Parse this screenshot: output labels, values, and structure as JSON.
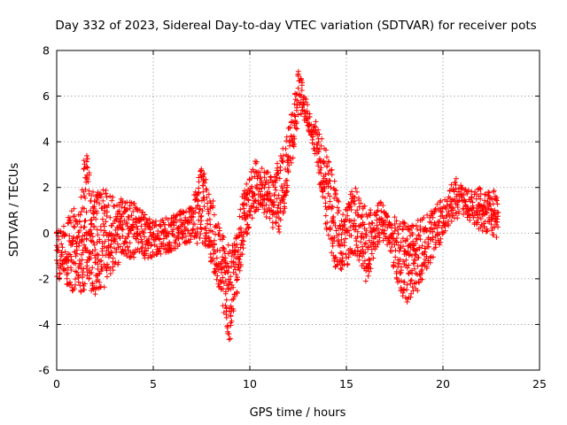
{
  "chart_data": {
    "type": "scatter",
    "title": "Day 332 of 2023, Sidereal Day-to-day VTEC variation (SDTVAR) for receiver pots",
    "xlabel": "GPS time / hours",
    "ylabel": "SDTVAR / TECUs",
    "xlim": [
      0,
      25
    ],
    "ylim": [
      -6,
      8
    ],
    "xticks": [
      "0",
      "5",
      "10",
      "15",
      "20",
      "25"
    ],
    "yticks": [
      "-6",
      "-4",
      "-2",
      "0",
      "2",
      "4",
      "6",
      "8"
    ],
    "grid": true,
    "marker": "plus",
    "color": "#ff0000",
    "series": [
      {
        "name": "SDTVAR",
        "envelope": [
          {
            "x": 0.0,
            "low": -1.9,
            "high": 0.3
          },
          {
            "x": 0.3,
            "low": -2.2,
            "high": 0.2
          },
          {
            "x": 0.6,
            "low": -2.4,
            "high": 0.7
          },
          {
            "x": 0.9,
            "low": -2.6,
            "high": 1.3
          },
          {
            "x": 1.2,
            "low": -2.7,
            "high": 0.8
          },
          {
            "x": 1.4,
            "low": -2.5,
            "high": 3.2
          },
          {
            "x": 1.6,
            "low": -2.3,
            "high": 3.5
          },
          {
            "x": 1.8,
            "low": -2.6,
            "high": 1.7
          },
          {
            "x": 2.0,
            "low": -2.7,
            "high": 2.2
          },
          {
            "x": 2.3,
            "low": -2.6,
            "high": 2.1
          },
          {
            "x": 2.6,
            "low": -2.2,
            "high": 1.9
          },
          {
            "x": 3.0,
            "low": -1.5,
            "high": 1.6
          },
          {
            "x": 3.5,
            "low": -1.2,
            "high": 1.5
          },
          {
            "x": 4.0,
            "low": -1.1,
            "high": 1.3
          },
          {
            "x": 4.5,
            "low": -1.2,
            "high": 0.9
          },
          {
            "x": 5.0,
            "low": -1.0,
            "high": 0.5
          },
          {
            "x": 5.5,
            "low": -0.9,
            "high": 0.6
          },
          {
            "x": 6.0,
            "low": -0.8,
            "high": 0.8
          },
          {
            "x": 6.5,
            "low": -0.5,
            "high": 1.0
          },
          {
            "x": 7.0,
            "low": -0.4,
            "high": 1.2
          },
          {
            "x": 7.5,
            "low": -0.5,
            "high": 3.0
          },
          {
            "x": 7.8,
            "low": -0.6,
            "high": 2.6
          },
          {
            "x": 8.0,
            "low": -1.3,
            "high": 1.8
          },
          {
            "x": 8.3,
            "low": -2.2,
            "high": 0.5
          },
          {
            "x": 8.6,
            "low": -3.2,
            "high": 0.1
          },
          {
            "x": 8.8,
            "low": -4.5,
            "high": -0.3
          },
          {
            "x": 9.0,
            "low": -4.9,
            "high": -0.8
          },
          {
            "x": 9.2,
            "low": -3.4,
            "high": -0.4
          },
          {
            "x": 9.4,
            "low": -2.3,
            "high": 0.4
          },
          {
            "x": 9.6,
            "low": -1.2,
            "high": 1.6
          },
          {
            "x": 9.8,
            "low": -0.3,
            "high": 2.4
          },
          {
            "x": 10.0,
            "low": 0.4,
            "high": 2.6
          },
          {
            "x": 10.3,
            "low": 0.8,
            "high": 3.2
          },
          {
            "x": 10.6,
            "low": 1.0,
            "high": 2.9
          },
          {
            "x": 10.9,
            "low": 0.6,
            "high": 2.8
          },
          {
            "x": 11.2,
            "low": 0.2,
            "high": 2.5
          },
          {
            "x": 11.5,
            "low": -0.3,
            "high": 3.4
          },
          {
            "x": 11.8,
            "low": 1.0,
            "high": 3.9
          },
          {
            "x": 12.0,
            "low": 2.2,
            "high": 4.6
          },
          {
            "x": 12.3,
            "low": 3.6,
            "high": 5.8
          },
          {
            "x": 12.5,
            "low": 5.0,
            "high": 7.1
          },
          {
            "x": 12.7,
            "low": 5.3,
            "high": 6.9
          },
          {
            "x": 12.9,
            "low": 4.6,
            "high": 6.0
          },
          {
            "x": 13.1,
            "low": 4.2,
            "high": 5.4
          },
          {
            "x": 13.4,
            "low": 3.2,
            "high": 4.9
          },
          {
            "x": 13.7,
            "low": 1.6,
            "high": 4.2
          },
          {
            "x": 14.0,
            "low": 0.0,
            "high": 3.5
          },
          {
            "x": 14.3,
            "low": -1.2,
            "high": 2.6
          },
          {
            "x": 14.6,
            "low": -1.8,
            "high": 1.4
          },
          {
            "x": 14.9,
            "low": -1.9,
            "high": 0.9
          },
          {
            "x": 15.2,
            "low": -1.3,
            "high": 1.8
          },
          {
            "x": 15.5,
            "low": -1.0,
            "high": 2.1
          },
          {
            "x": 15.8,
            "low": -1.6,
            "high": 1.1
          },
          {
            "x": 16.1,
            "low": -2.3,
            "high": 1.4
          },
          {
            "x": 16.4,
            "low": -1.1,
            "high": 1.0
          },
          {
            "x": 16.8,
            "low": -0.3,
            "high": 1.5
          },
          {
            "x": 17.2,
            "low": -0.6,
            "high": 0.6
          },
          {
            "x": 17.6,
            "low": -2.2,
            "high": 0.8
          },
          {
            "x": 18.0,
            "low": -3.0,
            "high": 0.5
          },
          {
            "x": 18.3,
            "low": -3.1,
            "high": 0.3
          },
          {
            "x": 18.6,
            "low": -2.7,
            "high": 0.6
          },
          {
            "x": 19.0,
            "low": -1.9,
            "high": 0.7
          },
          {
            "x": 19.4,
            "low": -1.2,
            "high": 1.0
          },
          {
            "x": 19.8,
            "low": -0.6,
            "high": 1.4
          },
          {
            "x": 20.2,
            "low": 0.2,
            "high": 1.6
          },
          {
            "x": 20.6,
            "low": 0.6,
            "high": 2.5
          },
          {
            "x": 21.0,
            "low": 0.7,
            "high": 2.1
          },
          {
            "x": 21.4,
            "low": 0.5,
            "high": 1.9
          },
          {
            "x": 21.8,
            "low": 0.2,
            "high": 2.1
          },
          {
            "x": 22.1,
            "low": -0.1,
            "high": 1.9
          },
          {
            "x": 22.4,
            "low": 0.0,
            "high": 1.8
          },
          {
            "x": 22.7,
            "low": -0.3,
            "high": 2.1
          },
          {
            "x": 22.9,
            "low": 0.0,
            "high": 2.2
          }
        ]
      }
    ]
  }
}
